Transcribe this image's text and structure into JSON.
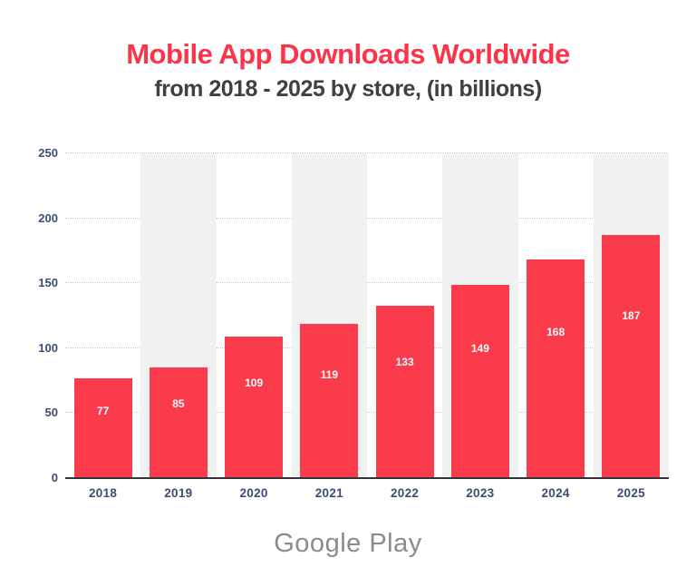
{
  "header": {
    "title": "Mobile App Downloads Worldwide",
    "subtitle": "from 2018 - 2025 by store, (in billions)"
  },
  "footer": {
    "store": "Google Play"
  },
  "chart_data": {
    "type": "bar",
    "title": "Mobile App Downloads Worldwide",
    "subtitle": "from 2018 - 2025 by store, (in billions)",
    "categories": [
      "2018",
      "2019",
      "2020",
      "2021",
      "2022",
      "2023",
      "2024",
      "2025"
    ],
    "values": [
      77,
      85,
      109,
      119,
      133,
      149,
      168,
      187
    ],
    "series_name": "Google Play",
    "xlabel": "",
    "ylabel": "",
    "ylim": [
      0,
      250
    ],
    "yticks": [
      0,
      50,
      100,
      150,
      200,
      250
    ],
    "grid": "horizontal-dotted",
    "legend_position": "none",
    "value_labels": "inside-bars-white",
    "background_bands": "alternating light gray behind odd columns"
  },
  "colors": {
    "title": "#fb3449",
    "subtitle": "#3f3f44",
    "bar": "#f93b4b",
    "band": "#f1f1f1",
    "gridline": "#c9c9c9",
    "axis_line": "#33333b",
    "axis_labels": "#3e4c74",
    "value_label": "#ffffff",
    "footer_text": "#8b8b8b",
    "background": "#ffffff"
  }
}
